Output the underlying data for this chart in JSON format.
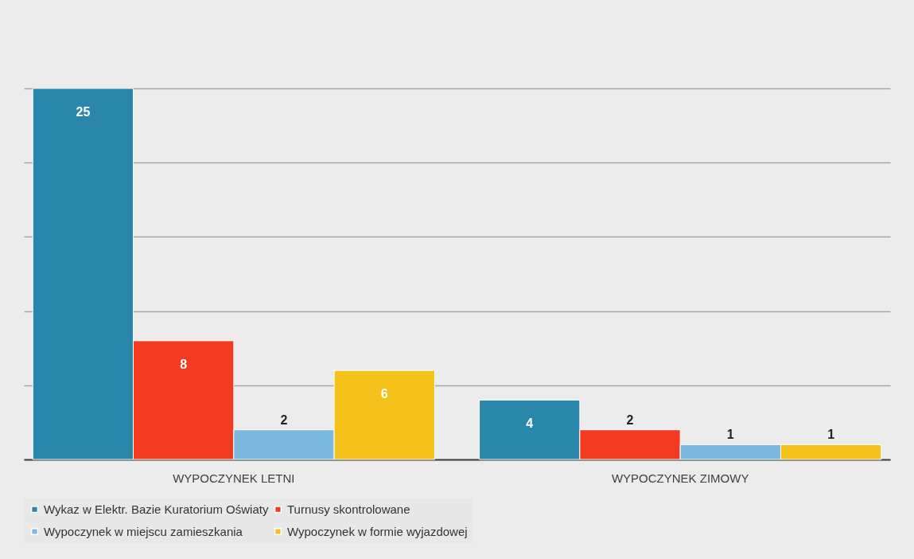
{
  "chart_data": {
    "type": "bar",
    "categories": [
      "WYPOCZYNEK LETNI",
      "WYPOCZYNEK ZIMOWY"
    ],
    "series": [
      {
        "name": "Wykaz w Elektr. Bazie Kuratorium Oświaty",
        "color": "#2a87ab",
        "values": [
          25,
          4
        ]
      },
      {
        "name": "Turnusy skontrolowane",
        "color": "#f33b22",
        "values": [
          8,
          2
        ]
      },
      {
        "name": "Wypoczynek w miejscu zamieszkania",
        "color": "#7db9e0",
        "values": [
          2,
          1
        ]
      },
      {
        "name": "Wypoczynek w formie wyjazdowej",
        "color": "#f5c21c",
        "values": [
          6,
          1
        ]
      }
    ],
    "ylim": [
      0,
      25
    ],
    "yticks": [
      {
        "value": 0,
        "label": null
      },
      {
        "value": 5,
        "label": null
      },
      {
        "value": 10,
        "label": null
      },
      {
        "value": 15,
        "label": null
      },
      {
        "value": 20,
        "label": null
      },
      {
        "value": 25,
        "label": null
      }
    ],
    "tick_labels": "x",
    "grid": "y",
    "legend": "bottom",
    "data_labels": true
  }
}
